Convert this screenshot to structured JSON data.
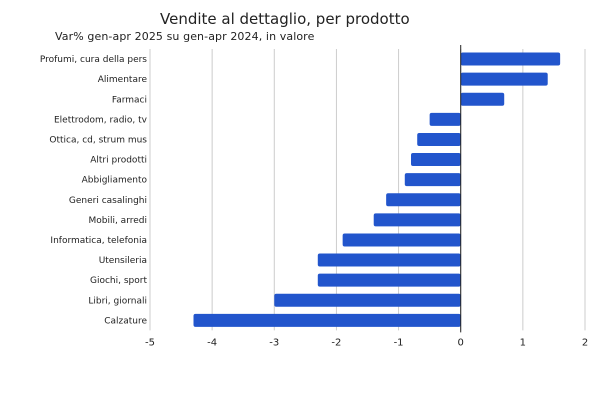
{
  "chart_data": {
    "type": "bar",
    "orientation": "horizontal",
    "title": "Vendite al dettaglio, per prodotto",
    "subtitle": "Var% gen-apr 2025 su gen-apr 2024, in valore",
    "categories": [
      "Profumi, cura della pers",
      "Alimentare",
      "Farmaci",
      "Elettrodom, radio, tv",
      "Ottica, cd, strum mus",
      "Altri prodotti",
      "Abbigliamento",
      "Generi casalinghi",
      "Mobili, arredi",
      "Informatica, telefonia",
      "Utensileria",
      "Giochi, sport",
      "Libri, giornali",
      "Calzature"
    ],
    "values": [
      1.6,
      1.4,
      0.7,
      -0.5,
      -0.7,
      -0.8,
      -0.9,
      -1.2,
      -1.4,
      -1.9,
      -2.3,
      -2.3,
      -3.0,
      -4.3
    ],
    "xlim": [
      -5,
      2
    ],
    "xticks": [
      -5,
      -4,
      -3,
      -2,
      -1,
      0,
      1,
      2
    ],
    "grid": true,
    "bar_color": "#2255cc",
    "grid_color": "#cccccc"
  }
}
